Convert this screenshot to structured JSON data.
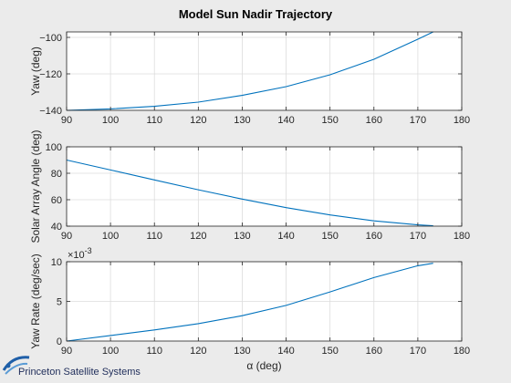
{
  "figure": {
    "title": "Model Sun Nadir Trajectory",
    "logo_text": "Princeton Satellite Systems",
    "background": "#ebebeb",
    "axes_color": "#ffffff",
    "line_color": "#0072bd"
  },
  "chart_data": [
    {
      "type": "line",
      "ylabel": "Yaw (deg)",
      "xlabel": "",
      "xlim": [
        90,
        180
      ],
      "ylim": [
        -140,
        -97
      ],
      "xticks": [
        90,
        100,
        110,
        120,
        130,
        140,
        150,
        160,
        170,
        180
      ],
      "xtick_labels": [
        "90",
        "100",
        "110",
        "120",
        "130",
        "140",
        "150",
        "160",
        "170",
        "180"
      ],
      "yticks": [
        -140,
        -120,
        -100
      ],
      "ytick_labels": [
        "−140",
        "−120",
        "−100"
      ],
      "grid": true,
      "x": [
        90,
        100,
        110,
        120,
        130,
        140,
        150,
        160,
        170,
        173.5
      ],
      "y": [
        -140.0,
        -139.2,
        -137.8,
        -135.5,
        -131.8,
        -127.0,
        -120.5,
        -112.0,
        -101.0,
        -97.0
      ]
    },
    {
      "type": "line",
      "ylabel": "Solar Array Angle (deg)",
      "xlabel": "",
      "xlim": [
        90,
        180
      ],
      "ylim": [
        40,
        100
      ],
      "xticks": [
        90,
        100,
        110,
        120,
        130,
        140,
        150,
        160,
        170,
        180
      ],
      "xtick_labels": [
        "90",
        "100",
        "110",
        "120",
        "130",
        "140",
        "150",
        "160",
        "170",
        "180"
      ],
      "yticks": [
        40,
        60,
        80,
        100
      ],
      "ytick_labels": [
        "40",
        "60",
        "80",
        "100"
      ],
      "grid": true,
      "x": [
        90,
        100,
        110,
        120,
        130,
        140,
        150,
        160,
        170,
        173.5
      ],
      "y": [
        90.0,
        82.5,
        75.0,
        67.5,
        60.5,
        54.0,
        48.5,
        44.0,
        41.0,
        40.3
      ]
    },
    {
      "type": "line",
      "ylabel": "Yaw Rate (deg/sec)",
      "xlabel": "α (deg)",
      "xlim": [
        90,
        180
      ],
      "ylim": [
        0,
        0.01
      ],
      "exponent_label": "×10",
      "exponent_power": "-3",
      "xticks": [
        90,
        100,
        110,
        120,
        130,
        140,
        150,
        160,
        170,
        180
      ],
      "xtick_labels": [
        "90",
        "100",
        "110",
        "120",
        "130",
        "140",
        "150",
        "160",
        "170",
        "180"
      ],
      "yticks": [
        0,
        0.005,
        0.01
      ],
      "ytick_labels": [
        "0",
        "5",
        "10"
      ],
      "grid": true,
      "x": [
        90,
        100,
        110,
        120,
        130,
        140,
        150,
        160,
        170,
        173.5
      ],
      "y": [
        0.0,
        0.0007,
        0.0014,
        0.0022,
        0.0032,
        0.0045,
        0.0062,
        0.008,
        0.0095,
        0.0098
      ]
    }
  ]
}
